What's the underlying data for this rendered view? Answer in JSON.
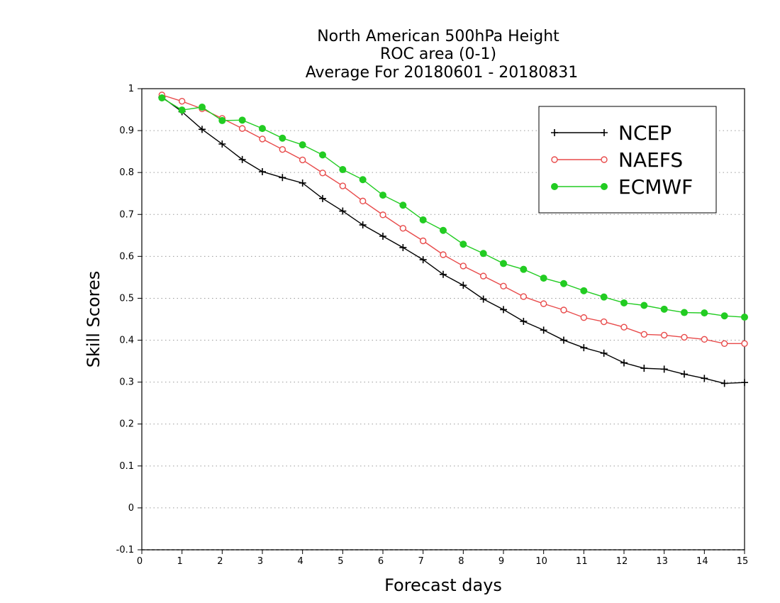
{
  "chart_data": {
    "type": "line",
    "title_lines": [
      "North American 500hPa Height",
      "ROC area (0-1)",
      "Average For 20180601 - 20180831"
    ],
    "xlabel": "Forecast days",
    "ylabel": "Skill Scores",
    "xlim": [
      0,
      15
    ],
    "ylim": [
      -0.1,
      1
    ],
    "xticks": [
      0,
      1,
      2,
      3,
      4,
      5,
      6,
      7,
      8,
      9,
      10,
      11,
      12,
      13,
      14,
      15
    ],
    "xtick_labels": [
      "0",
      "1",
      "2",
      "3",
      "4",
      "5",
      "6",
      "7",
      "8",
      "9",
      "10",
      "11",
      "12",
      "13",
      "14",
      "15"
    ],
    "yticks": [
      -0.1,
      0,
      0.1,
      0.2,
      0.3,
      0.4,
      0.5,
      0.6,
      0.7,
      0.8,
      0.9,
      1
    ],
    "ytick_labels": [
      "-0.1",
      "0",
      "0.1",
      "0.2",
      "0.3",
      "0.4",
      "0.5",
      "0.6",
      "0.7",
      "0.8",
      "0.9",
      "1"
    ],
    "grid": "horizontal dotted",
    "legend_position": "top-right",
    "x": [
      0.5,
      1,
      1.5,
      2,
      2.5,
      3,
      3.5,
      4,
      4.5,
      5,
      5.5,
      6,
      6.5,
      7,
      7.5,
      8,
      8.5,
      9,
      9.5,
      10,
      10.5,
      11,
      11.5,
      12,
      12.5,
      13,
      13.5,
      14,
      14.5,
      15
    ],
    "series": [
      {
        "name": "NCEP",
        "color": "#000000",
        "marker": "plus",
        "values": [
          0.98,
          0.945,
          0.903,
          0.868,
          0.831,
          0.802,
          0.788,
          0.775,
          0.738,
          0.708,
          0.675,
          0.648,
          0.621,
          0.592,
          0.557,
          0.531,
          0.498,
          0.473,
          0.445,
          0.424,
          0.4,
          0.382,
          0.369,
          0.346,
          0.333,
          0.331,
          0.319,
          0.309,
          0.297,
          0.299
        ]
      },
      {
        "name": "NAEFS",
        "color": "#e84a4a",
        "marker": "open-circle",
        "values": [
          0.985,
          0.97,
          0.952,
          0.929,
          0.905,
          0.88,
          0.855,
          0.83,
          0.799,
          0.768,
          0.732,
          0.699,
          0.667,
          0.637,
          0.604,
          0.577,
          0.553,
          0.529,
          0.504,
          0.487,
          0.472,
          0.454,
          0.444,
          0.431,
          0.414,
          0.412,
          0.407,
          0.402,
          0.392,
          0.392
        ]
      },
      {
        "name": "ECMWF",
        "color": "#22cc22",
        "marker": "filled-circle",
        "values": [
          0.978,
          0.949,
          0.956,
          0.924,
          0.925,
          0.905,
          0.882,
          0.866,
          0.842,
          0.807,
          0.783,
          0.746,
          0.722,
          0.687,
          0.662,
          0.629,
          0.607,
          0.583,
          0.569,
          0.548,
          0.535,
          0.518,
          0.503,
          0.489,
          0.483,
          0.474,
          0.466,
          0.465,
          0.458,
          0.455
        ]
      }
    ]
  }
}
